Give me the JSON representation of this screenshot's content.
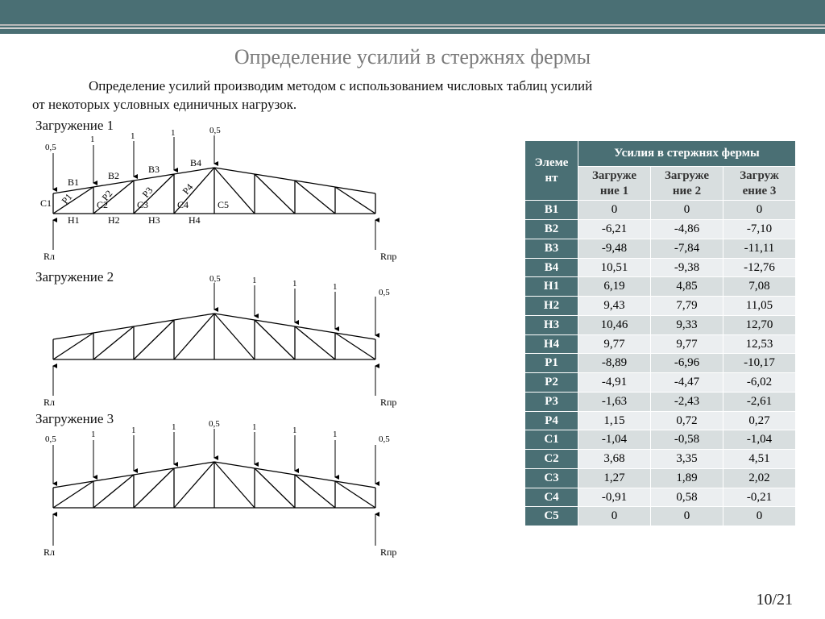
{
  "title": "Определение усилий в стержнях фермы",
  "intro_line1": "Определение усилий производим методом с использованием числовых таблиц усилий",
  "intro_line2": "от некоторых условных единичных нагрузок.",
  "diagrams": {
    "d1_label": "Загружение 1",
    "d2_label": "Загружение 2",
    "d3_label": "Загружение 3",
    "Rl": "Rл",
    "Rr": "Rпр",
    "loads_d1": [
      "0,5",
      "1",
      "1",
      "1",
      "0,5"
    ],
    "loads_d2": [
      "0,5",
      "1",
      "1",
      "1",
      "0,5"
    ],
    "loads_d3": [
      "0,5",
      "1",
      "1",
      "1",
      "0,5",
      "1",
      "1",
      "1",
      "0,5"
    ],
    "members": {
      "B": [
        "B1",
        "B2",
        "B3",
        "B4"
      ],
      "H": [
        "H1",
        "H2",
        "H3",
        "H4"
      ],
      "C": [
        "C1",
        "C2",
        "C3",
        "C4",
        "C5"
      ],
      "P": [
        "P1",
        "P2",
        "P3",
        "P4"
      ]
    }
  },
  "table": {
    "hdr_left_l1": "Элеме",
    "hdr_left_l2": "нт",
    "hdr_right": "Усилия в стержнях фермы",
    "sub1_l1": "Загруже",
    "sub1_l2": "ние 1",
    "sub2_l1": "Загруже",
    "sub2_l2": "ние 2",
    "sub3_l1": "Загруж",
    "sub3_l2": "ение 3",
    "rows": [
      {
        "e": "B1",
        "v": [
          "0",
          "0",
          "0"
        ]
      },
      {
        "e": "B2",
        "v": [
          "-6,21",
          "-4,86",
          "-7,10"
        ]
      },
      {
        "e": "B3",
        "v": [
          "-9,48",
          "-7,84",
          "-11,11"
        ]
      },
      {
        "e": "B4",
        "v": [
          "10,51",
          "-9,38",
          "-12,76"
        ]
      },
      {
        "e": "H1",
        "v": [
          "6,19",
          "4,85",
          "7,08"
        ]
      },
      {
        "e": "H2",
        "v": [
          "9,43",
          "7,79",
          "11,05"
        ]
      },
      {
        "e": "H3",
        "v": [
          "10,46",
          "9,33",
          "12,70"
        ]
      },
      {
        "e": "H4",
        "v": [
          "9,77",
          "9,77",
          "12,53"
        ]
      },
      {
        "e": "P1",
        "v": [
          "-8,89",
          "-6,96",
          "-10,17"
        ]
      },
      {
        "e": "P2",
        "v": [
          "-4,91",
          "-4,47",
          "-6,02"
        ]
      },
      {
        "e": "P3",
        "v": [
          "-1,63",
          "-2,43",
          "-2,61"
        ]
      },
      {
        "e": "P4",
        "v": [
          "1,15",
          "0,72",
          "0,27"
        ]
      },
      {
        "e": "C1",
        "v": [
          "-1,04",
          "-0,58",
          "-1,04"
        ]
      },
      {
        "e": "C2",
        "v": [
          "3,68",
          "3,35",
          "4,51"
        ]
      },
      {
        "e": "C3",
        "v": [
          "1,27",
          "1,89",
          "2,02"
        ]
      },
      {
        "e": "C4",
        "v": [
          "-0,91",
          "0,58",
          "-0,21"
        ]
      },
      {
        "e": "C5",
        "v": [
          "0",
          "0",
          "0"
        ]
      }
    ]
  },
  "pagenum": "10/21",
  "colors": {
    "teal": "#4a6f74",
    "zebra_a": "#d8dedf",
    "zebra_b": "#ebeef0"
  }
}
